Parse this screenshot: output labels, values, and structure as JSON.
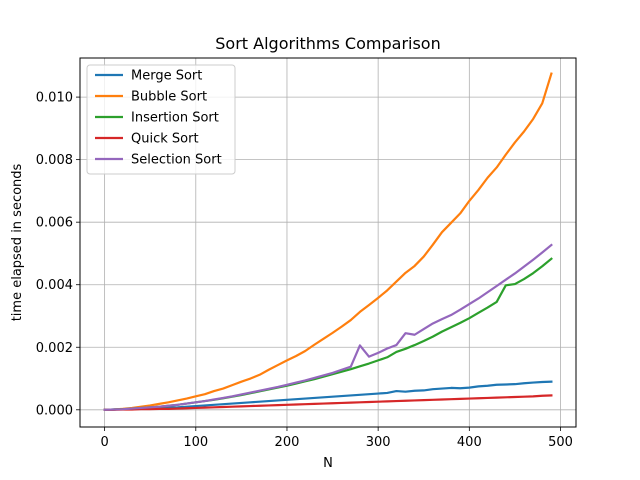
{
  "chart_data": {
    "type": "line",
    "title": "Sort Algorithms Comparison",
    "xlabel": "N",
    "ylabel": "time elapsed in seconds",
    "xlim": [
      -27,
      517
    ],
    "ylim": [
      -0.00055,
      0.01125
    ],
    "xticks": [
      0,
      100,
      200,
      300,
      400,
      500
    ],
    "yticks": [
      0.0,
      0.002,
      0.004,
      0.006,
      0.008,
      0.01
    ],
    "xtick_labels": [
      "0",
      "100",
      "200",
      "300",
      "400",
      "500"
    ],
    "ytick_labels": [
      "0.000",
      "0.002",
      "0.004",
      "0.006",
      "0.008",
      "0.010"
    ],
    "grid": true,
    "legend_position": "top-left",
    "x": [
      0,
      10,
      20,
      30,
      40,
      50,
      60,
      70,
      80,
      90,
      100,
      110,
      120,
      130,
      140,
      150,
      160,
      170,
      180,
      190,
      200,
      210,
      220,
      230,
      240,
      250,
      260,
      270,
      280,
      290,
      300,
      310,
      320,
      330,
      340,
      350,
      360,
      370,
      380,
      390,
      400,
      410,
      420,
      430,
      440,
      450,
      460,
      470,
      480,
      490
    ],
    "series": [
      {
        "name": "Merge Sort",
        "color": "#1f77b4",
        "values": [
          0.0,
          1e-05,
          2e-05,
          3e-05,
          4e-05,
          5e-05,
          6e-05,
          7e-05,
          8e-05,
          0.0001,
          0.00012,
          0.00014,
          0.00016,
          0.00018,
          0.0002,
          0.00022,
          0.00024,
          0.00026,
          0.00028,
          0.0003,
          0.00032,
          0.00034,
          0.00036,
          0.00038,
          0.0004,
          0.00042,
          0.00044,
          0.00046,
          0.00048,
          0.0005,
          0.00052,
          0.00054,
          0.0006,
          0.00058,
          0.00061,
          0.00062,
          0.00066,
          0.00068,
          0.0007,
          0.00069,
          0.00071,
          0.00075,
          0.00077,
          0.0008,
          0.00081,
          0.00082,
          0.00085,
          0.00087,
          0.00089,
          0.0009
        ]
      },
      {
        "name": "Bubble Sort",
        "color": "#ff7f0e",
        "values": [
          0.0,
          1e-05,
          3e-05,
          6e-05,
          0.0001,
          0.00014,
          0.00019,
          0.00024,
          0.0003,
          0.00036,
          0.00043,
          0.0005,
          0.0006,
          0.00068,
          0.00079,
          0.0009,
          0.001,
          0.00112,
          0.00128,
          0.00143,
          0.00158,
          0.00172,
          0.00188,
          0.00208,
          0.00227,
          0.00246,
          0.00266,
          0.00287,
          0.00313,
          0.00335,
          0.00358,
          0.00382,
          0.0041,
          0.00438,
          0.0046,
          0.0049,
          0.00528,
          0.00568,
          0.00598,
          0.00628,
          0.00668,
          0.00703,
          0.00742,
          0.00775,
          0.00816,
          0.00855,
          0.0089,
          0.0093,
          0.0098,
          0.01075
        ]
      },
      {
        "name": "Insertion Sort",
        "color": "#2ca02c",
        "values": [
          0.0,
          1e-05,
          2e-05,
          4e-05,
          6e-05,
          8e-05,
          0.0001,
          0.00013,
          0.00016,
          0.0002,
          0.00024,
          0.00028,
          0.00032,
          0.00037,
          0.00042,
          0.00047,
          0.00053,
          0.00059,
          0.00065,
          0.00071,
          0.00077,
          0.00084,
          0.00091,
          0.00098,
          0.00106,
          0.00114,
          0.00122,
          0.0013,
          0.00139,
          0.00148,
          0.00158,
          0.00168,
          0.00185,
          0.00195,
          0.00207,
          0.0022,
          0.00234,
          0.0025,
          0.00264,
          0.00278,
          0.00293,
          0.0031,
          0.00327,
          0.00345,
          0.00398,
          0.00402,
          0.00418,
          0.00437,
          0.00459,
          0.00483
        ]
      },
      {
        "name": "Quick Sort",
        "color": "#d62728",
        "values": [
          0.0,
          0.0,
          1e-05,
          1e-05,
          2e-05,
          2e-05,
          3e-05,
          3e-05,
          4e-05,
          5e-05,
          6e-05,
          7e-05,
          8e-05,
          9e-05,
          0.0001,
          0.00011,
          0.00012,
          0.00013,
          0.00014,
          0.00015,
          0.00016,
          0.00017,
          0.00018,
          0.00019,
          0.0002,
          0.00021,
          0.00022,
          0.00023,
          0.00024,
          0.00025,
          0.00026,
          0.00027,
          0.00028,
          0.00029,
          0.0003,
          0.00031,
          0.00032,
          0.00033,
          0.00034,
          0.00035,
          0.00036,
          0.00037,
          0.00038,
          0.00039,
          0.0004,
          0.00041,
          0.00042,
          0.00043,
          0.00045,
          0.00046
        ]
      },
      {
        "name": "Selection Sort",
        "color": "#9467bd",
        "values": [
          0.0,
          1e-05,
          2e-05,
          4e-05,
          6e-05,
          8e-05,
          0.0001,
          0.00013,
          0.00016,
          0.0002,
          0.00024,
          0.00028,
          0.00033,
          0.00038,
          0.00043,
          0.00049,
          0.00055,
          0.00061,
          0.00067,
          0.00073,
          0.0008,
          0.00087,
          0.00094,
          0.00102,
          0.0011,
          0.00118,
          0.00128,
          0.00138,
          0.00206,
          0.0017,
          0.00182,
          0.00196,
          0.00207,
          0.00245,
          0.0024,
          0.00258,
          0.00276,
          0.0029,
          0.00303,
          0.0032,
          0.00338,
          0.00356,
          0.00376,
          0.00396,
          0.00416,
          0.00436,
          0.00458,
          0.0048,
          0.00503,
          0.00527
        ]
      }
    ]
  }
}
